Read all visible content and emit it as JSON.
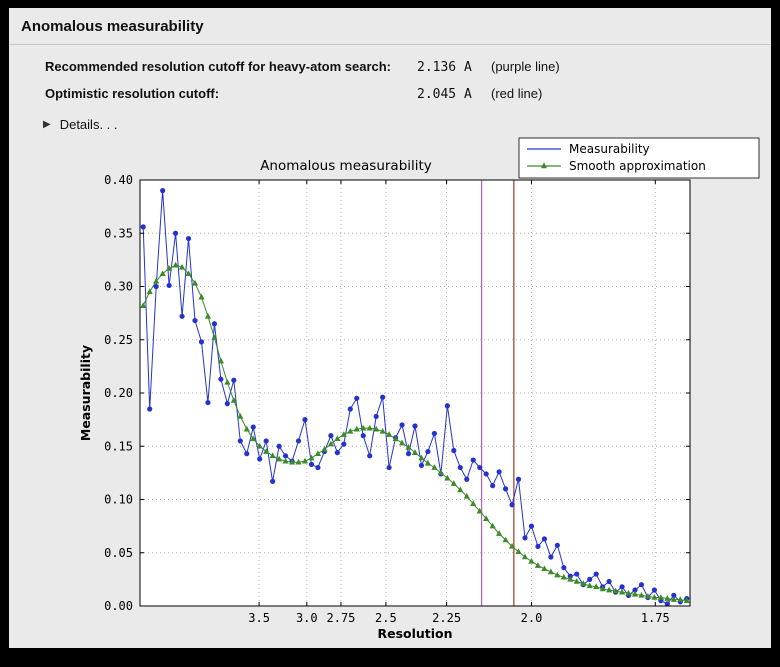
{
  "window": {
    "title": "Anomalous measurability"
  },
  "info": {
    "rows": [
      {
        "label": "Recommended resolution cutoff for heavy-atom search:",
        "value": "2.136 A",
        "note": "(purple line)"
      },
      {
        "label": "Optimistic resolution cutoff:",
        "value": "2.045 A",
        "note": "(red line)"
      }
    ],
    "disclosure_icon": "▶",
    "details_label": "Details. . ."
  },
  "chart_data": {
    "type": "line",
    "title": "Anomalous measurability",
    "xlabel": "Resolution",
    "ylabel": "Measurability",
    "x_scale": "inverse_d_squared",
    "x_ticks_resolution": [
      3.5,
      3.0,
      2.75,
      2.5,
      2.25,
      2.0,
      1.75
    ],
    "x_tick_labels": [
      "3.5",
      "3.0",
      "2.75",
      "2.5",
      "2.25",
      "2.0",
      "1.75"
    ],
    "ylim": [
      0.0,
      0.4
    ],
    "y_ticks": [
      0.0,
      0.05,
      0.1,
      0.15,
      0.2,
      0.25,
      0.3,
      0.35,
      0.4
    ],
    "s_range": [
      0.008,
      0.348
    ],
    "s_start": 0.01,
    "s_step": 0.004,
    "grid": true,
    "legend_position": "top-right",
    "vlines": [
      {
        "name": "purple-cutoff-line",
        "resolution": 2.136,
        "color": "#b75ec9"
      },
      {
        "name": "red-cutoff-line",
        "resolution": 2.045,
        "color": "#9e3a28"
      }
    ],
    "legend": [
      {
        "label": "Measurability",
        "color": "#2433cf",
        "marker": "circle"
      },
      {
        "label": "Smooth approximation",
        "color": "#3c8a28",
        "marker": "triangle"
      }
    ],
    "series": [
      {
        "name": "Measurability",
        "values": [
          0.356,
          0.185,
          0.3,
          0.39,
          0.301,
          0.35,
          0.272,
          0.345,
          0.268,
          0.248,
          0.191,
          0.265,
          0.213,
          0.19,
          0.212,
          0.155,
          0.143,
          0.168,
          0.138,
          0.155,
          0.117,
          0.15,
          0.141,
          0.136,
          0.155,
          0.175,
          0.133,
          0.13,
          0.145,
          0.16,
          0.144,
          0.152,
          0.185,
          0.195,
          0.16,
          0.141,
          0.178,
          0.196,
          0.13,
          0.158,
          0.17,
          0.143,
          0.169,
          0.132,
          0.145,
          0.162,
          0.124,
          0.188,
          0.146,
          0.13,
          0.119,
          0.137,
          0.13,
          0.124,
          0.113,
          0.126,
          0.11,
          0.095,
          0.119,
          0.064,
          0.075,
          0.056,
          0.063,
          0.046,
          0.057,
          0.036,
          0.028,
          0.03,
          0.02,
          0.025,
          0.03,
          0.018,
          0.023,
          0.013,
          0.018,
          0.01,
          0.015,
          0.02,
          0.008,
          0.015,
          0.005,
          0.002,
          0.01,
          0.004,
          0.007
        ]
      },
      {
        "name": "Smooth approximation",
        "values": [
          0.282,
          0.295,
          0.305,
          0.312,
          0.317,
          0.32,
          0.318,
          0.312,
          0.303,
          0.29,
          0.272,
          0.252,
          0.23,
          0.21,
          0.193,
          0.178,
          0.166,
          0.157,
          0.15,
          0.145,
          0.141,
          0.138,
          0.136,
          0.135,
          0.135,
          0.136,
          0.139,
          0.143,
          0.147,
          0.152,
          0.157,
          0.161,
          0.164,
          0.166,
          0.167,
          0.167,
          0.166,
          0.164,
          0.161,
          0.157,
          0.153,
          0.149,
          0.144,
          0.139,
          0.134,
          0.13,
          0.125,
          0.12,
          0.115,
          0.109,
          0.103,
          0.096,
          0.089,
          0.082,
          0.075,
          0.068,
          0.062,
          0.056,
          0.051,
          0.046,
          0.042,
          0.038,
          0.035,
          0.032,
          0.029,
          0.027,
          0.025,
          0.023,
          0.021,
          0.019,
          0.018,
          0.016,
          0.015,
          0.014,
          0.013,
          0.012,
          0.011,
          0.01,
          0.009,
          0.008,
          0.008,
          0.007,
          0.006,
          0.006,
          0.005
        ]
      }
    ]
  }
}
